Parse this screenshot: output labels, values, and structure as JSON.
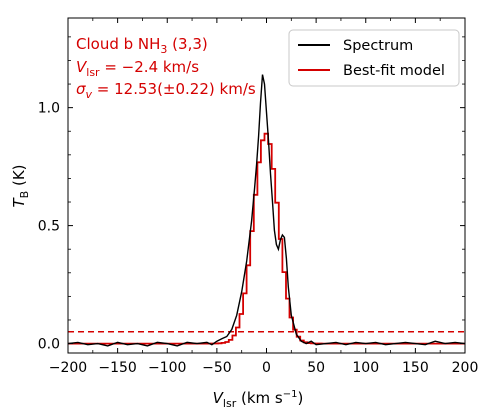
{
  "chart_data": {
    "type": "line",
    "xlabel": "V",
    "xlabel_sub": "lsr",
    "xlabel_units": " (km s",
    "xlabel_sup": "−1",
    "xlabel_close": ")",
    "ylabel": "T",
    "ylabel_sub": "B",
    "ylabel_units": " (K)",
    "xlim": [
      -200,
      200
    ],
    "ylim": [
      -0.04,
      1.38
    ],
    "xticks": [
      -200,
      -150,
      -100,
      -50,
      0,
      50,
      100,
      150,
      200
    ],
    "xtick_labels": [
      "−200",
      "−150",
      "−100",
      "−50",
      "0",
      "50",
      "100",
      "150",
      "200"
    ],
    "yticks": [
      0.0,
      0.5,
      1.0
    ],
    "ytick_labels": [
      "0.0",
      "0.5",
      "1.0"
    ],
    "annotations": {
      "line1": "Cloud b NH",
      "line1_sub": "3",
      "line1_tail": " (3,3)",
      "line2_sym": "V",
      "line2_sub": "lsr",
      "line2_tail": " = −2.4 km/s",
      "line3_sym": "σ",
      "line3_sub": "v",
      "line3_tail": " = 12.53(±0.22) km/s"
    },
    "threshold": {
      "y": 0.05,
      "color": "#d40000",
      "style": "dashed"
    },
    "legend": {
      "placement": "top-right"
    },
    "series": [
      {
        "name": "Spectrum",
        "color": "#000000",
        "x": [
          -200,
          -190,
          -180,
          -170,
          -160,
          -150,
          -140,
          -130,
          -120,
          -110,
          -100,
          -90,
          -80,
          -70,
          -60,
          -55,
          -50,
          -45,
          -40,
          -35,
          -30,
          -25,
          -20,
          -15,
          -12,
          -10,
          -8,
          -6,
          -4,
          -2,
          0,
          2,
          4,
          6,
          8,
          10,
          12,
          14,
          16,
          18,
          20,
          22,
          25,
          30,
          35,
          40,
          45,
          50,
          60,
          70,
          80,
          90,
          100,
          110,
          120,
          130,
          140,
          150,
          160,
          170,
          180,
          190,
          200
        ],
        "y": [
          0.0,
          0.005,
          -0.005,
          0.0,
          -0.01,
          0.005,
          -0.005,
          0.0,
          -0.01,
          0.005,
          0.0,
          -0.01,
          0.005,
          0.0,
          0.005,
          -0.005,
          0.01,
          0.02,
          0.03,
          0.06,
          0.12,
          0.22,
          0.35,
          0.52,
          0.66,
          0.76,
          0.88,
          1.02,
          1.14,
          1.1,
          0.98,
          0.86,
          0.72,
          0.6,
          0.48,
          0.42,
          0.4,
          0.44,
          0.46,
          0.45,
          0.36,
          0.24,
          0.12,
          0.04,
          0.01,
          0.0,
          0.01,
          -0.005,
          0.0,
          0.005,
          -0.005,
          0.005,
          0.0,
          0.005,
          -0.005,
          0.0,
          0.005,
          0.0,
          -0.005,
          0.01,
          0.0,
          0.005,
          0.0
        ]
      },
      {
        "name": "Best-fit model",
        "color": "#d40000",
        "model": {
          "type": "gaussian",
          "amplitude": 0.89,
          "center": -2.4,
          "sigma": 12.53
        }
      }
    ]
  }
}
